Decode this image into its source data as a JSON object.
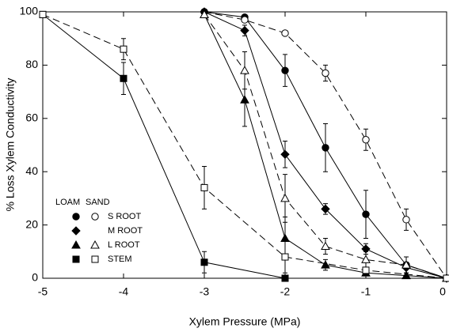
{
  "chart_data": {
    "type": "line",
    "x_label": "Xylem Pressure (MPa)",
    "y_label": "% Loss Xylem Conductivity",
    "xlim": [
      -5,
      0
    ],
    "xticks": [
      -5,
      -4,
      -3,
      -2,
      -1,
      0
    ],
    "ylim": [
      0,
      100
    ],
    "yticks": [
      0,
      20,
      40,
      60,
      80,
      100
    ],
    "legend_columns": [
      "LOAM",
      "SAND"
    ],
    "series": [
      {
        "name": "S ROOT",
        "column": 0,
        "marker": "circle",
        "filled": true,
        "line_style": "solid",
        "color": "#000000",
        "x": [
          -3,
          -2.5,
          -2,
          -1.5,
          -1,
          -0.5,
          0
        ],
        "values": [
          100,
          98,
          78,
          49,
          24,
          5,
          0
        ],
        "errors": [
          null,
          null,
          6,
          9,
          9,
          3,
          null
        ]
      },
      {
        "name": "S ROOT",
        "column": 1,
        "marker": "circle",
        "filled": false,
        "line_style": "dashed",
        "color": "#000000",
        "x": [
          -3,
          -2.5,
          -2,
          -1.5,
          -1,
          -0.5,
          0
        ],
        "values": [
          100,
          97,
          92,
          77,
          52,
          22,
          0
        ],
        "errors": [
          null,
          null,
          null,
          3,
          4,
          4,
          null
        ]
      },
      {
        "name": "M ROOT",
        "column": 0,
        "marker": "diamond",
        "filled": true,
        "line_style": "solid",
        "color": "#000000",
        "x": [
          -3,
          -2.5,
          -2,
          -1.5,
          -1,
          -0.5,
          0
        ],
        "values": [
          100,
          93,
          46.5,
          26,
          11,
          4,
          0
        ],
        "errors": [
          null,
          2,
          5,
          2,
          2,
          2,
          null
        ]
      },
      {
        "name": "L ROOT",
        "column": 0,
        "marker": "triangle",
        "filled": true,
        "line_style": "solid",
        "color": "#000000",
        "x": [
          -3,
          -2.5,
          -2,
          -1.5,
          -1,
          -0.5,
          0
        ],
        "values": [
          99,
          67,
          15,
          5,
          2,
          1,
          0
        ],
        "errors": [
          null,
          10,
          8,
          2,
          null,
          null,
          null
        ]
      },
      {
        "name": "L ROOT",
        "column": 1,
        "marker": "triangle",
        "filled": false,
        "line_style": "dashed",
        "color": "#000000",
        "x": [
          -3,
          -2.5,
          -2,
          -1.5,
          -1,
          -0.5,
          0
        ],
        "values": [
          99,
          78,
          30,
          12,
          7,
          5,
          0
        ],
        "errors": [
          null,
          7,
          9,
          3,
          3,
          null,
          null
        ]
      },
      {
        "name": "STEM",
        "column": 0,
        "marker": "square",
        "filled": true,
        "line_style": "solid",
        "color": "#000000",
        "x": [
          -5,
          -4,
          -3,
          -2
        ],
        "values": [
          99,
          75,
          6,
          0
        ],
        "errors": [
          null,
          6,
          4,
          null
        ]
      },
      {
        "name": "STEM",
        "column": 1,
        "marker": "square",
        "filled": false,
        "line_style": "dashed",
        "color": "#000000",
        "x": [
          -5,
          -4,
          -3,
          -2,
          -1,
          0
        ],
        "values": [
          99,
          86,
          34,
          8,
          3,
          0
        ],
        "errors": [
          null,
          4,
          8,
          6,
          null,
          null
        ]
      }
    ]
  }
}
